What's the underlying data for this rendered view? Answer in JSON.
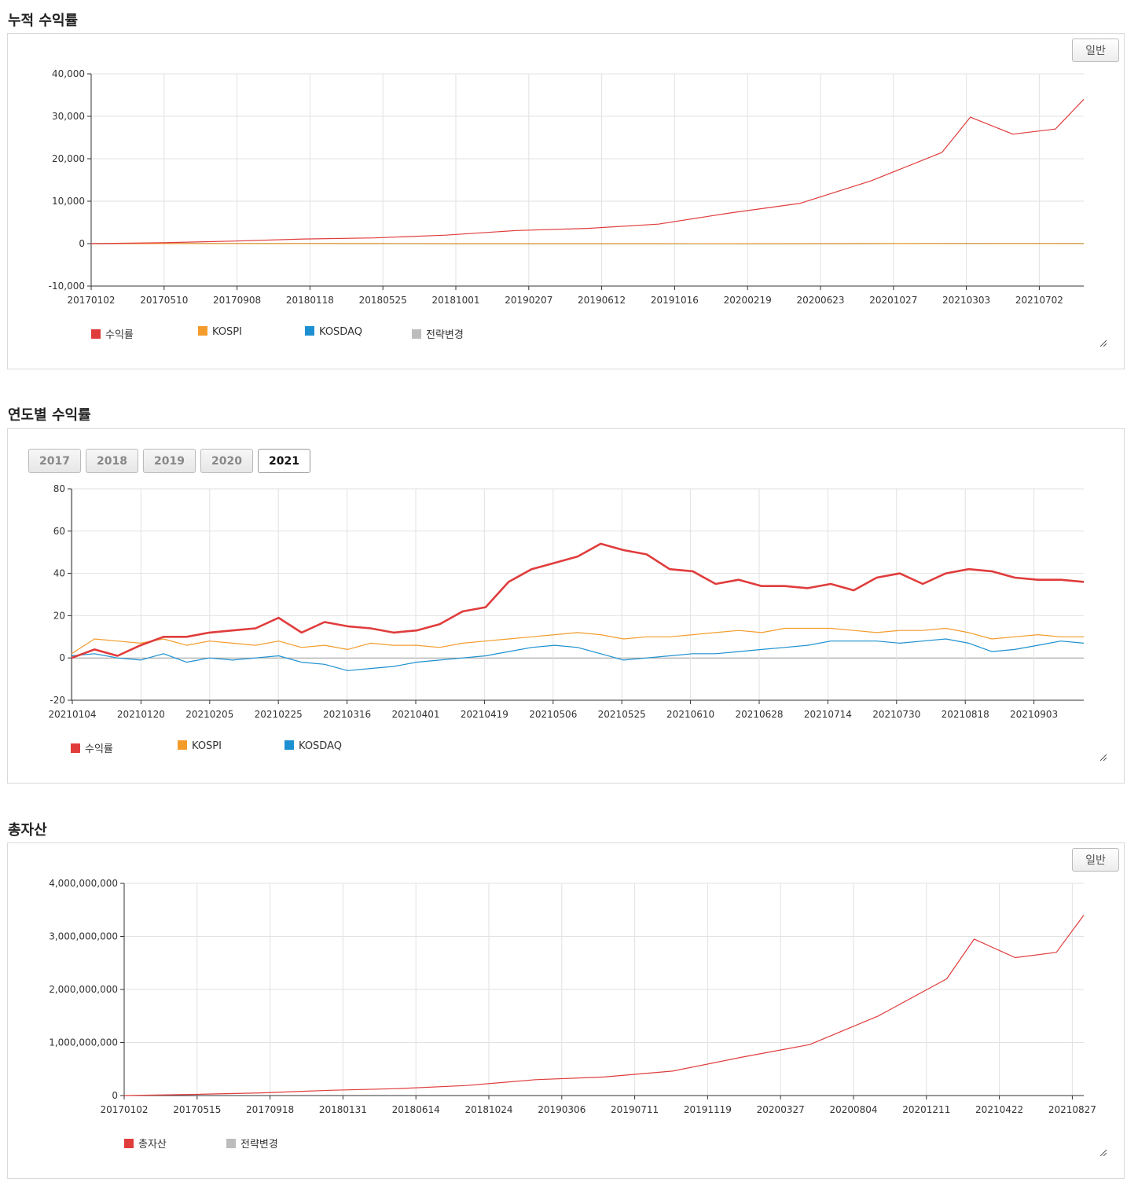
{
  "sections": [
    {
      "title": "누적 수익률",
      "mode_button": "일반",
      "legend": [
        {
          "label": "수익률",
          "color": "#e03c3c"
        },
        {
          "label": "KOSPI",
          "color": "#f39c2c"
        },
        {
          "label": "KOSDAQ",
          "color": "#1c90d0"
        },
        {
          "label": "전략변경",
          "color": "#bdbdbd"
        }
      ]
    },
    {
      "title": "연도별 수익률",
      "year_buttons": [
        "2017",
        "2018",
        "2019",
        "2020",
        "2021"
      ],
      "active_year": "2021",
      "legend": [
        {
          "label": "수익률",
          "color": "#e03c3c"
        },
        {
          "label": "KOSPI",
          "color": "#f39c2c"
        },
        {
          "label": "KOSDAQ",
          "color": "#1c90d0"
        }
      ]
    },
    {
      "title": "총자산",
      "mode_button": "일반",
      "legend": [
        {
          "label": "총자산",
          "color": "#e03c3c"
        },
        {
          "label": "전략변경",
          "color": "#bdbdbd"
        }
      ]
    }
  ],
  "chart_data": [
    {
      "type": "line",
      "title": "누적 수익률",
      "ylim": [
        -10000,
        40000
      ],
      "y_ticks": [
        40000,
        30000,
        20000,
        10000,
        0,
        -10000
      ],
      "y_tick_labels": [
        "40,000",
        "30,000",
        "20,000",
        "10,000",
        "0",
        "-10,000"
      ],
      "x_tick_labels": [
        "20170102",
        "20170510",
        "20170908",
        "20180118",
        "20180525",
        "20181001",
        "20190207",
        "20190612",
        "20191016",
        "20200219",
        "20200623",
        "20201027",
        "20210303",
        "20210702"
      ],
      "grid": true,
      "legend_position": "bottom-left",
      "x_index": [
        0,
        5,
        10,
        15,
        20,
        25,
        30,
        35,
        40,
        45,
        50,
        55,
        60,
        62,
        65,
        68,
        70
      ],
      "series": [
        {
          "name": "수익률",
          "color": "#e03c3c",
          "values": [
            0,
            200,
            600,
            1100,
            1350,
            2000,
            3100,
            3600,
            4600,
            7200,
            9500,
            14800,
            21500,
            29800,
            25800,
            27000,
            34000
          ]
        },
        {
          "name": "KOSPI",
          "color": "#f39c2c",
          "values": [
            0,
            10,
            20,
            15,
            10,
            5,
            0,
            -5,
            -5,
            -10,
            0,
            10,
            25,
            30,
            25,
            25,
            30
          ]
        },
        {
          "name": "KOSDAQ",
          "color": "#1c90d0",
          "values": [
            0,
            10,
            20,
            10,
            0,
            -10,
            -15,
            -20,
            -20,
            -25,
            -10,
            5,
            15,
            20,
            15,
            15,
            20
          ]
        }
      ]
    },
    {
      "type": "line",
      "title": "연도별 수익률",
      "ylim": [
        -20,
        80
      ],
      "y_ticks": [
        80,
        60,
        40,
        20,
        0,
        -20
      ],
      "x_tick_labels": [
        "20210104",
        "20210120",
        "20210205",
        "20210225",
        "20210316",
        "20210401",
        "20210419",
        "20210506",
        "20210525",
        "20210610",
        "20210628",
        "20210714",
        "20210730",
        "20210818",
        "20210903"
      ],
      "grid": true,
      "legend_position": "bottom-left",
      "x_index": [
        0,
        4,
        8,
        12,
        16,
        20,
        24,
        28,
        32,
        36,
        40,
        44,
        48,
        52,
        56,
        60,
        64,
        68,
        72,
        76,
        80,
        84,
        88,
        92,
        96,
        100,
        104,
        108,
        112,
        116,
        120,
        124,
        128,
        132,
        136,
        140,
        144,
        148,
        152,
        156,
        160,
        164,
        168,
        172,
        176
      ],
      "series": [
        {
          "name": "수익률",
          "color": "#e03c3c",
          "values": [
            0,
            4,
            1,
            6,
            10,
            10,
            12,
            13,
            14,
            19,
            12,
            17,
            15,
            14,
            12,
            13,
            16,
            22,
            24,
            36,
            42,
            45,
            48,
            54,
            51,
            49,
            42,
            41,
            35,
            37,
            34,
            34,
            33,
            35,
            32,
            38,
            40,
            35,
            40,
            42,
            41,
            38,
            37,
            37,
            36
          ]
        },
        {
          "name": "KOSPI",
          "color": "#f39c2c",
          "values": [
            2,
            9,
            8,
            7,
            9,
            6,
            8,
            7,
            6,
            8,
            5,
            6,
            4,
            7,
            6,
            6,
            5,
            7,
            8,
            9,
            10,
            11,
            12,
            11,
            9,
            10,
            10,
            11,
            12,
            13,
            12,
            14,
            14,
            14,
            13,
            12,
            13,
            13,
            14,
            12,
            9,
            10,
            11,
            10,
            10
          ]
        },
        {
          "name": "KOSDAQ",
          "color": "#1c90d0",
          "values": [
            1,
            2,
            0,
            -1,
            2,
            -2,
            0,
            -1,
            0,
            1,
            -2,
            -3,
            -6,
            -5,
            -4,
            -2,
            -1,
            0,
            1,
            3,
            5,
            6,
            5,
            2,
            -1,
            0,
            1,
            2,
            2,
            3,
            4,
            5,
            6,
            8,
            8,
            8,
            7,
            8,
            9,
            7,
            3,
            4,
            6,
            8,
            7
          ]
        }
      ]
    },
    {
      "type": "line",
      "title": "총자산",
      "ylim": [
        0,
        4000000000
      ],
      "y_ticks": [
        4000000000,
        3000000000,
        2000000000,
        1000000000,
        0
      ],
      "y_tick_labels": [
        "4,000,000,000",
        "3,000,000,000",
        "2,000,000,000",
        "1,000,000,000",
        "0"
      ],
      "x_tick_labels": [
        "20170102",
        "20170515",
        "20170918",
        "20180131",
        "20180614",
        "20181024",
        "20190306",
        "20190711",
        "20191119",
        "20200327",
        "20200804",
        "20201211",
        "20210422",
        "20210827"
      ],
      "grid": true,
      "legend_position": "bottom-left",
      "x_index": [
        0,
        5,
        10,
        15,
        20,
        25,
        30,
        35,
        40,
        45,
        50,
        55,
        60,
        62,
        65,
        68,
        70
      ],
      "series": [
        {
          "name": "총자산",
          "color": "#e03c3c",
          "values": [
            0,
            20000000,
            50000000,
            100000000,
            130000000,
            190000000,
            300000000,
            350000000,
            460000000,
            720000000,
            960000000,
            1500000000,
            2200000000,
            2950000000,
            2600000000,
            2700000000,
            3400000000
          ]
        }
      ]
    }
  ]
}
